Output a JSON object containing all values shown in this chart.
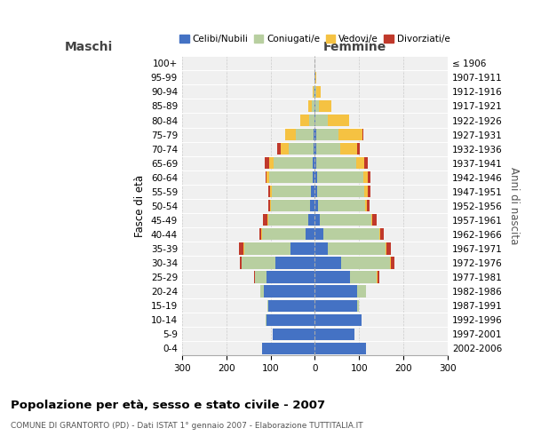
{
  "age_groups": [
    "100+",
    "95-99",
    "90-94",
    "85-89",
    "80-84",
    "75-79",
    "70-74",
    "65-69",
    "60-64",
    "55-59",
    "50-54",
    "45-49",
    "40-44",
    "35-39",
    "30-34",
    "25-29",
    "20-24",
    "15-19",
    "10-14",
    "5-9",
    "0-4"
  ],
  "birth_years": [
    "≤ 1906",
    "1907-1911",
    "1912-1916",
    "1917-1921",
    "1922-1926",
    "1927-1931",
    "1932-1936",
    "1937-1941",
    "1942-1946",
    "1947-1951",
    "1952-1956",
    "1957-1961",
    "1962-1966",
    "1967-1971",
    "1972-1976",
    "1977-1981",
    "1982-1986",
    "1987-1991",
    "1992-1996",
    "1997-2001",
    "2002-2006"
  ],
  "males": {
    "celibi": [
      0,
      1,
      1,
      1,
      1,
      3,
      3,
      4,
      4,
      8,
      10,
      15,
      20,
      55,
      90,
      110,
      115,
      105,
      110,
      95,
      120
    ],
    "coniugati": [
      0,
      0,
      2,
      5,
      12,
      40,
      55,
      90,
      100,
      90,
      90,
      90,
      100,
      105,
      75,
      25,
      8,
      2,
      1,
      0,
      0
    ],
    "vedovi": [
      0,
      0,
      2,
      8,
      20,
      25,
      20,
      10,
      5,
      3,
      2,
      2,
      2,
      2,
      1,
      1,
      0,
      0,
      0,
      0,
      0
    ],
    "divorziati": [
      0,
      0,
      0,
      0,
      0,
      0,
      8,
      10,
      3,
      4,
      4,
      10,
      4,
      10,
      4,
      2,
      1,
      0,
      0,
      0,
      0
    ]
  },
  "females": {
    "nubili": [
      0,
      1,
      1,
      1,
      2,
      3,
      3,
      4,
      5,
      6,
      8,
      12,
      20,
      30,
      60,
      80,
      95,
      95,
      105,
      90,
      115
    ],
    "coniugate": [
      0,
      0,
      2,
      8,
      28,
      50,
      55,
      90,
      105,
      105,
      105,
      115,
      125,
      130,
      110,
      60,
      20,
      5,
      1,
      0,
      0
    ],
    "vedove": [
      0,
      2,
      10,
      28,
      48,
      55,
      38,
      18,
      10,
      8,
      5,
      3,
      2,
      2,
      1,
      1,
      0,
      0,
      0,
      0,
      0
    ],
    "divorziate": [
      0,
      0,
      0,
      0,
      0,
      2,
      6,
      8,
      6,
      6,
      6,
      10,
      8,
      10,
      8,
      4,
      1,
      0,
      0,
      0,
      0
    ]
  },
  "colors": {
    "celibi_nubili": "#4472c4",
    "coniugati": "#b8cfa0",
    "vedovi": "#f5c242",
    "divorziati": "#c0392b"
  },
  "title": "Popolazione per età, sesso e stato civile - 2007",
  "subtitle": "COMUNE DI GRANTORTO (PD) - Dati ISTAT 1° gennaio 2007 - Elaborazione TUTTITALIA.IT",
  "ylabel": "Fasce di età",
  "ylabel_right": "Anni di nascita",
  "xlabel_left": "Maschi",
  "xlabel_right": "Femmine",
  "xlim": 300,
  "background_color": "#f0f0f0",
  "grid_color": "#cccccc"
}
